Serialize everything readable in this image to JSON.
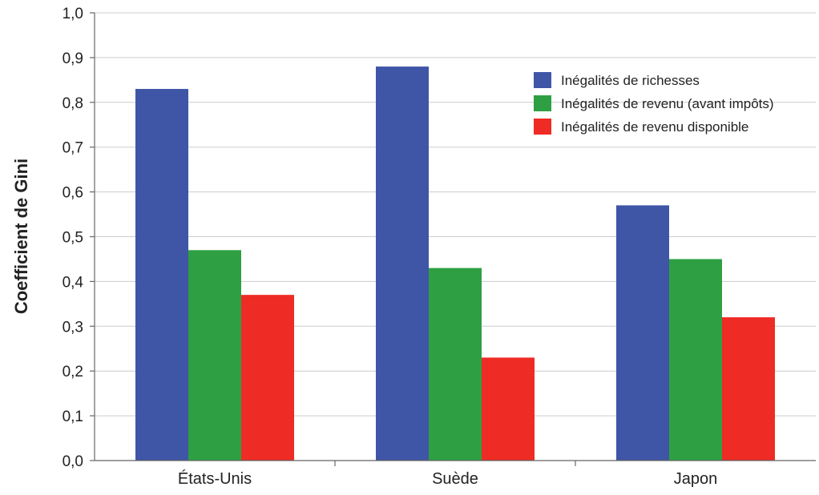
{
  "chart_data": {
    "type": "bar",
    "title": "",
    "xlabel": "",
    "ylabel": "Coefficient de Gini",
    "ylim": [
      0,
      1.0
    ],
    "yticks": [
      "0,0",
      "0,1",
      "0,2",
      "0,3",
      "0,4",
      "0,5",
      "0,6",
      "0,7",
      "0,8",
      "0,9",
      "1,0"
    ],
    "grid": true,
    "legend_position": "top-right",
    "categories": [
      "États-Unis",
      "Suède",
      "Japon"
    ],
    "series": [
      {
        "name": "Inégalités de richesses",
        "color": "#3f55a6",
        "values": [
          0.83,
          0.88,
          0.57
        ]
      },
      {
        "name": "Inégalités de revenu (avant impôts)",
        "color": "#2ea043",
        "values": [
          0.47,
          0.43,
          0.45
        ]
      },
      {
        "name": "Inégalités de revenu disponible",
        "color": "#ee2b24",
        "values": [
          0.37,
          0.23,
          0.32
        ]
      }
    ]
  }
}
